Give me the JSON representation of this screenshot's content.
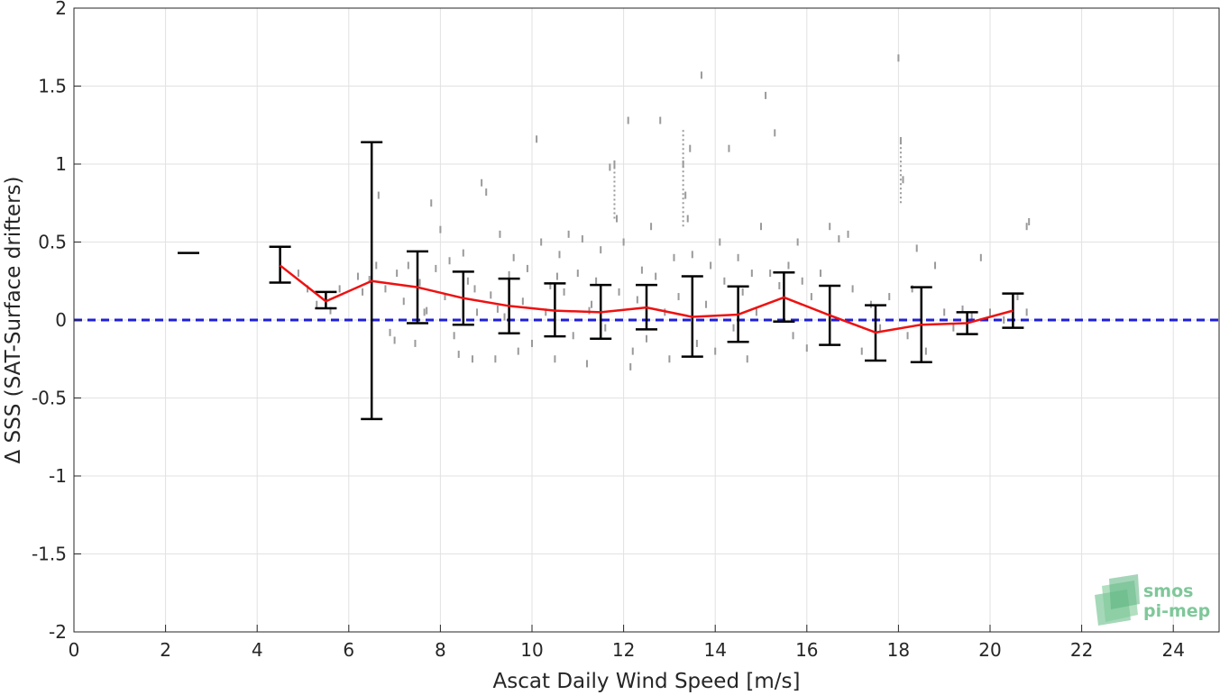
{
  "chart_data": {
    "type": "scatter",
    "xlabel": "Ascat Daily Wind Speed [m/s]",
    "ylabel": "Δ SSS (SAT-Surface drifters)",
    "xlim": [
      0,
      25
    ],
    "ylim": [
      -2,
      2
    ],
    "xticks": [
      0,
      2,
      4,
      6,
      8,
      10,
      12,
      14,
      16,
      18,
      20,
      22,
      24
    ],
    "yticks": [
      2,
      1.5,
      1,
      0.5,
      0,
      -0.5,
      -1,
      -1.5,
      -2
    ],
    "grid": true,
    "reference_line": {
      "y": 0,
      "color": "#1f1fd9",
      "style": "dashed"
    },
    "mean_line": {
      "color": "#ee1111",
      "x": [
        4.5,
        5.5,
        6.5,
        7.5,
        8.5,
        9.5,
        10.5,
        11.5,
        12.5,
        13.5,
        14.5,
        15.5,
        16.5,
        17.5,
        18.5,
        19.5,
        20.5
      ],
      "y": [
        0.35,
        0.12,
        0.25,
        0.21,
        0.14,
        0.09,
        0.06,
        0.05,
        0.08,
        0.02,
        0.035,
        0.145,
        0.03,
        -0.08,
        -0.03,
        -0.02,
        0.06
      ]
    },
    "error_bars": {
      "color": "#000000",
      "bins": [
        {
          "x": 2.5,
          "low": 0.43,
          "high": 0.43
        },
        {
          "x": 4.5,
          "low": 0.24,
          "high": 0.47
        },
        {
          "x": 5.5,
          "low": 0.075,
          "high": 0.18
        },
        {
          "x": 6.5,
          "low": -0.635,
          "high": 1.14
        },
        {
          "x": 7.5,
          "low": -0.02,
          "high": 0.44
        },
        {
          "x": 8.5,
          "low": -0.03,
          "high": 0.31
        },
        {
          "x": 9.5,
          "low": -0.085,
          "high": 0.265
        },
        {
          "x": 10.5,
          "low": -0.105,
          "high": 0.235
        },
        {
          "x": 11.5,
          "low": -0.12,
          "high": 0.225
        },
        {
          "x": 12.5,
          "low": -0.06,
          "high": 0.225
        },
        {
          "x": 13.5,
          "low": -0.235,
          "high": 0.28
        },
        {
          "x": 14.5,
          "low": -0.14,
          "high": 0.215
        },
        {
          "x": 15.5,
          "low": -0.01,
          "high": 0.305
        },
        {
          "x": 16.5,
          "low": -0.16,
          "high": 0.22
        },
        {
          "x": 17.5,
          "low": -0.26,
          "high": 0.095
        },
        {
          "x": 18.5,
          "low": -0.27,
          "high": 0.21
        },
        {
          "x": 19.5,
          "low": -0.09,
          "high": 0.05
        },
        {
          "x": 20.5,
          "low": -0.05,
          "high": 0.17
        }
      ]
    },
    "scatter_color": "#9a9a9a",
    "scatter_points": [
      [
        6.2,
        0.28
      ],
      [
        6.3,
        0.18
      ],
      [
        6.45,
        0.26
      ],
      [
        6.6,
        0.35
      ],
      [
        6.65,
        0.8
      ],
      [
        6.8,
        0.2
      ],
      [
        6.9,
        -0.08
      ],
      [
        7.0,
        -0.13
      ],
      [
        7.05,
        0.3
      ],
      [
        7.2,
        0.12
      ],
      [
        7.3,
        0.35
      ],
      [
        7.45,
        -0.15
      ],
      [
        7.55,
        0.24
      ],
      [
        7.7,
        0.06
      ],
      [
        7.8,
        0.75
      ],
      [
        7.9,
        0.33
      ],
      [
        8.0,
        0.58
      ],
      [
        8.1,
        0.15
      ],
      [
        8.2,
        0.38
      ],
      [
        8.3,
        -0.1
      ],
      [
        8.4,
        -0.22
      ],
      [
        8.5,
        0.43
      ],
      [
        8.6,
        0.25
      ],
      [
        8.7,
        -0.25
      ],
      [
        8.8,
        0.05
      ],
      [
        8.9,
        0.88
      ],
      [
        9.0,
        0.82
      ],
      [
        9.1,
        0.16
      ],
      [
        9.2,
        -0.25
      ],
      [
        9.3,
        0.55
      ],
      [
        9.4,
        0.02
      ],
      [
        9.5,
        0.29
      ],
      [
        9.6,
        0.4
      ],
      [
        9.7,
        -0.2
      ],
      [
        9.8,
        0.12
      ],
      [
        9.9,
        0.33
      ],
      [
        10.0,
        -0.15
      ],
      [
        10.1,
        1.16
      ],
      [
        10.2,
        0.5
      ],
      [
        10.3,
        0.05
      ],
      [
        10.4,
        0.22
      ],
      [
        10.5,
        -0.25
      ],
      [
        10.6,
        0.42
      ],
      [
        10.7,
        0.18
      ],
      [
        10.8,
        0.55
      ],
      [
        10.9,
        -0.1
      ],
      [
        11.0,
        0.3
      ],
      [
        11.1,
        0.52
      ],
      [
        11.2,
        -0.28
      ],
      [
        11.3,
        0.1
      ],
      [
        11.4,
        0.25
      ],
      [
        11.5,
        0.45
      ],
      [
        11.6,
        -0.05
      ],
      [
        11.7,
        0.98
      ],
      [
        11.8,
        1.0
      ],
      [
        11.85,
        0.65
      ],
      [
        11.9,
        0.18
      ],
      [
        12.0,
        0.5
      ],
      [
        12.1,
        1.28
      ],
      [
        12.2,
        -0.2
      ],
      [
        12.3,
        0.13
      ],
      [
        12.4,
        0.32
      ],
      [
        12.5,
        -0.12
      ],
      [
        12.6,
        0.6
      ],
      [
        12.7,
        0.28
      ],
      [
        12.8,
        1.28
      ],
      [
        12.9,
        0.05
      ],
      [
        13.0,
        -0.25
      ],
      [
        13.1,
        0.4
      ],
      [
        13.2,
        0.15
      ],
      [
        13.3,
        1.0
      ],
      [
        13.35,
        0.8
      ],
      [
        13.4,
        0.65
      ],
      [
        13.45,
        1.1
      ],
      [
        13.5,
        0.42
      ],
      [
        13.6,
        -0.15
      ],
      [
        13.7,
        1.57
      ],
      [
        13.8,
        0.1
      ],
      [
        13.9,
        0.35
      ],
      [
        14.0,
        -0.2
      ],
      [
        14.1,
        0.5
      ],
      [
        14.2,
        0.25
      ],
      [
        14.3,
        1.1
      ],
      [
        14.4,
        -0.05
      ],
      [
        14.5,
        0.4
      ],
      [
        14.6,
        0.18
      ],
      [
        14.7,
        -0.25
      ],
      [
        14.8,
        0.3
      ],
      [
        14.9,
        0.05
      ],
      [
        15.0,
        0.6
      ],
      [
        15.1,
        1.44
      ],
      [
        15.2,
        0.3
      ],
      [
        15.3,
        1.2
      ],
      [
        15.4,
        0.22
      ],
      [
        15.5,
        0.05
      ],
      [
        15.6,
        0.35
      ],
      [
        15.7,
        -0.1
      ],
      [
        15.8,
        0.5
      ],
      [
        15.9,
        0.25
      ],
      [
        16.0,
        -0.18
      ],
      [
        16.1,
        0.15
      ],
      [
        16.3,
        0.3
      ],
      [
        16.5,
        0.6
      ],
      [
        16.7,
        0.52
      ],
      [
        16.9,
        0.55
      ],
      [
        17.0,
        0.2
      ],
      [
        17.2,
        -0.2
      ],
      [
        17.4,
        0.1
      ],
      [
        17.6,
        -0.05
      ],
      [
        17.8,
        0.15
      ],
      [
        18.0,
        1.68
      ],
      [
        18.05,
        1.15
      ],
      [
        18.1,
        0.9
      ],
      [
        18.2,
        -0.1
      ],
      [
        18.3,
        0.2
      ],
      [
        18.4,
        0.46
      ],
      [
        18.6,
        -0.2
      ],
      [
        18.8,
        0.35
      ],
      [
        19.0,
        0.05
      ],
      [
        19.2,
        -0.05
      ],
      [
        19.4,
        0.07
      ],
      [
        19.6,
        0.02
      ],
      [
        19.8,
        0.4
      ],
      [
        20.0,
        0.05
      ],
      [
        20.3,
        0.0
      ],
      [
        20.6,
        0.15
      ],
      [
        20.8,
        0.05
      ],
      [
        20.85,
        0.63
      ],
      [
        20.8,
        0.6
      ],
      [
        5.1,
        0.2
      ],
      [
        5.3,
        0.1
      ],
      [
        5.6,
        0.06
      ],
      [
        5.8,
        0.2
      ],
      [
        4.9,
        0.3
      ],
      [
        10.55,
        0.28
      ],
      [
        12.15,
        -0.3
      ],
      [
        11.25,
        0.06
      ],
      [
        9.25,
        0.07
      ],
      [
        8.75,
        0.2
      ],
      [
        7.65,
        0.05
      ]
    ],
    "scatter_streaks": [
      {
        "x": 13.3,
        "from": 0.6,
        "to": 1.22
      },
      {
        "x": 18.05,
        "from": 0.75,
        "to": 1.15
      },
      {
        "x": 11.8,
        "from": 0.65,
        "to": 1.0
      }
    ]
  },
  "logo": {
    "line1": "smos",
    "line2": "pi-mep"
  }
}
